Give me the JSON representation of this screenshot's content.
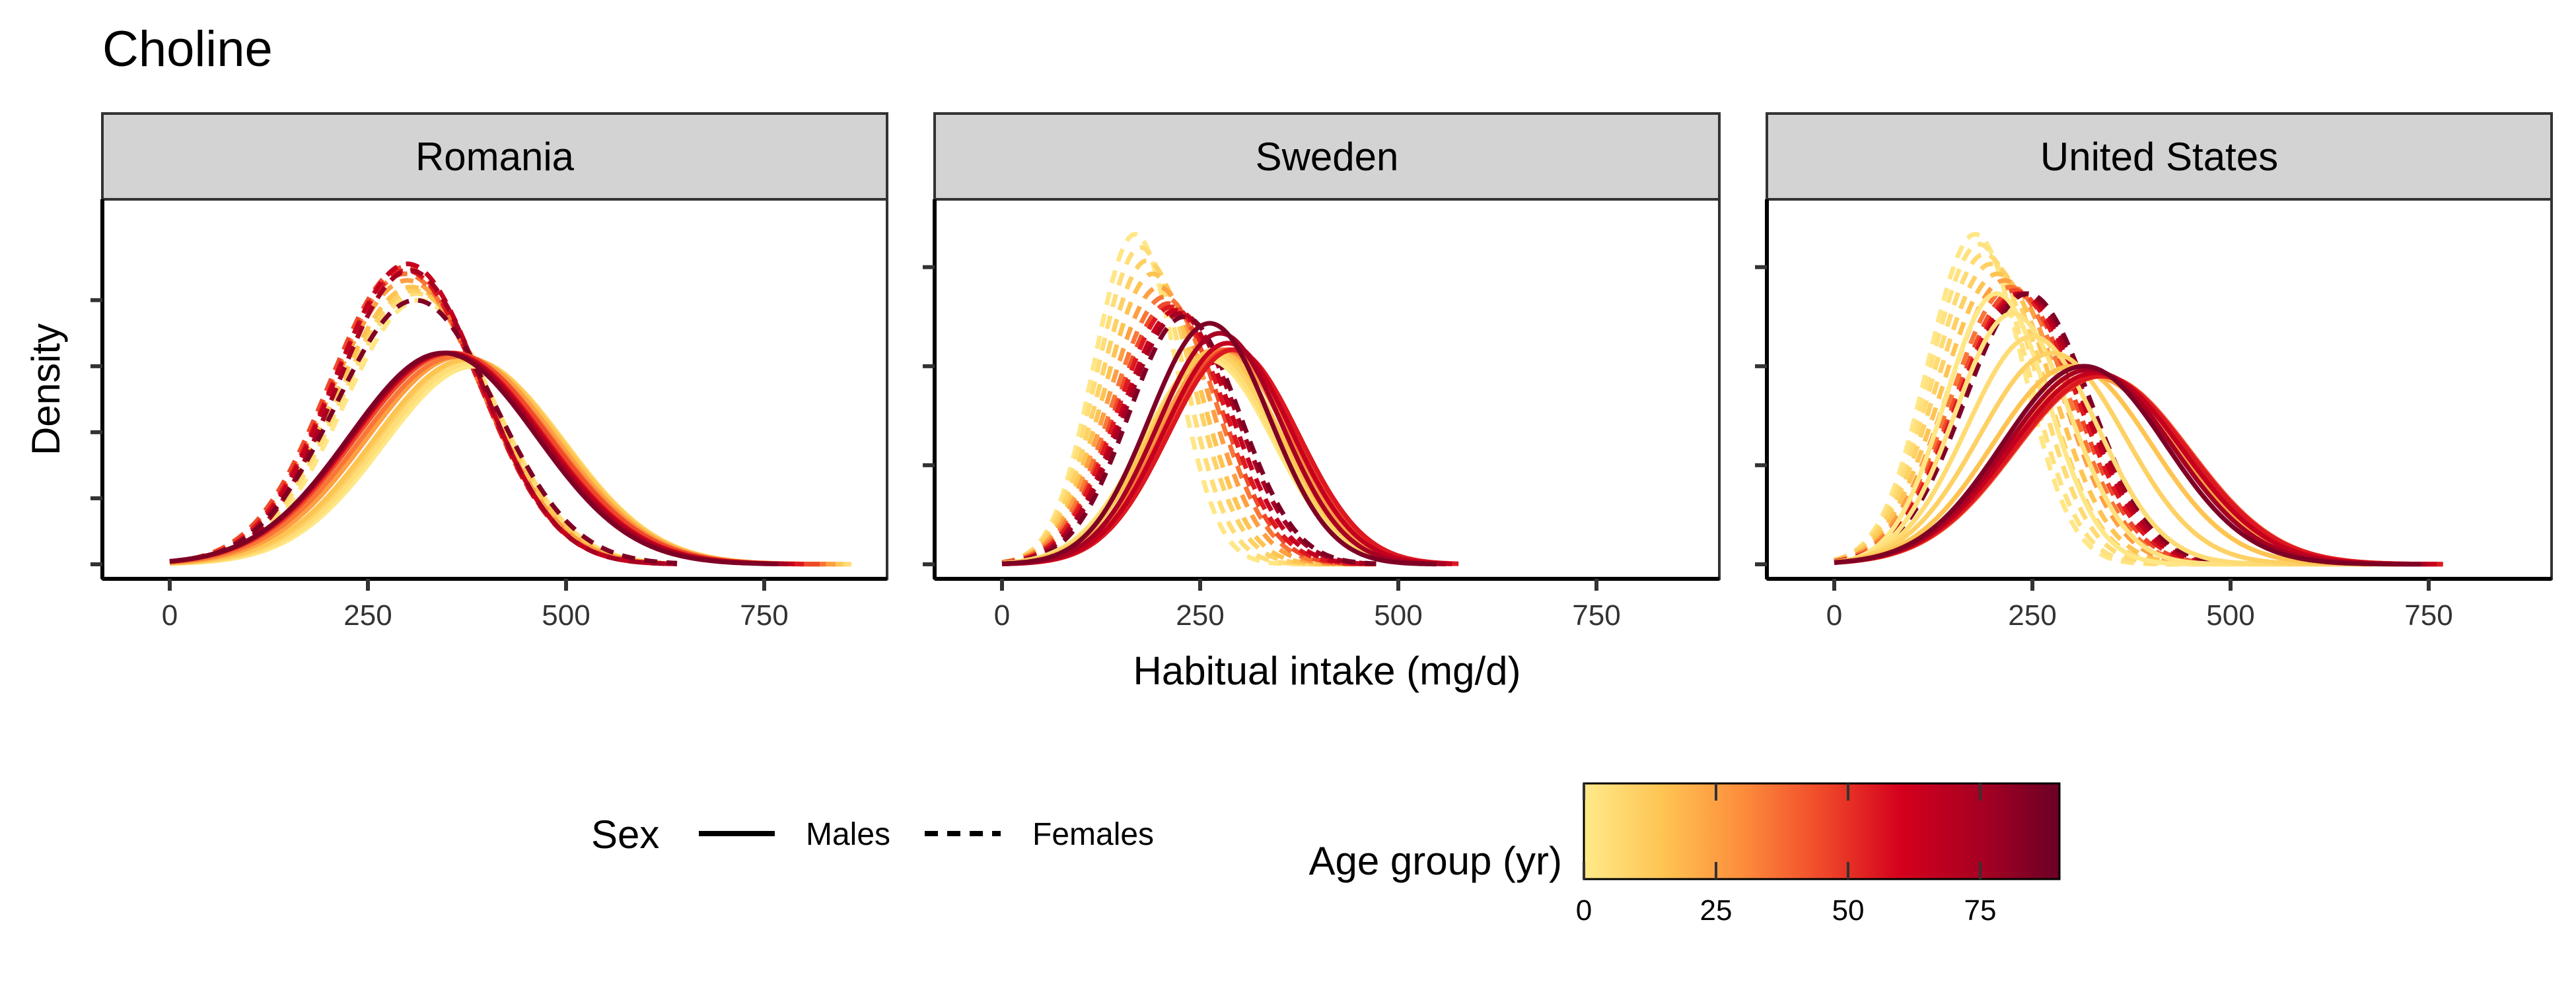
{
  "chart_data": {
    "type": "line",
    "title": "Choline",
    "xlabel": "Habitual intake (mg/d)",
    "ylabel": "Density",
    "xlim": [
      -85,
      905
    ],
    "x_ticks": [
      0,
      250,
      500,
      750
    ],
    "x_tick_labels": [
      "0",
      "250",
      "500",
      "750"
    ],
    "y_tick_labels_shown": false,
    "grid": false,
    "legend_position": "bottom",
    "legend": {
      "sex_title": "Sex",
      "sex_items": [
        {
          "label": "Males",
          "linetype": "solid"
        },
        {
          "label": "Females",
          "linetype": "dashed"
        }
      ],
      "age_title": "Age group (yr)",
      "age_range": [
        0,
        90
      ],
      "age_ticks": [
        0,
        25,
        50,
        75
      ],
      "age_tick_labels": [
        "0",
        "25",
        "50",
        "75"
      ],
      "age_colors": [
        "#FFEA8A",
        "#FEC452",
        "#FD8D3C",
        "#F0492A",
        "#D4001D",
        "#A80022",
        "#6B0026"
      ]
    },
    "panels": [
      {
        "facet": "Romania",
        "y_max": 1.09,
        "y_ticks": [
          0,
          0.2,
          0.4,
          0.6,
          0.8
        ],
        "series": [
          {
            "sex": "Males",
            "age": 1,
            "mean": 385,
            "sd": 115,
            "peak": 0.6,
            "end": 860
          },
          {
            "sex": "Males",
            "age": 5,
            "mean": 382,
            "sd": 116,
            "peak": 0.61,
            "end": 860
          },
          {
            "sex": "Males",
            "age": 10,
            "mean": 378,
            "sd": 117,
            "peak": 0.62,
            "end": 855
          },
          {
            "sex": "Males",
            "age": 15,
            "mean": 375,
            "sd": 118,
            "peak": 0.62,
            "end": 850
          },
          {
            "sex": "Males",
            "age": 25,
            "mean": 368,
            "sd": 119,
            "peak": 0.63,
            "end": 840
          },
          {
            "sex": "Males",
            "age": 35,
            "mean": 362,
            "sd": 120,
            "peak": 0.63,
            "end": 830
          },
          {
            "sex": "Males",
            "age": 45,
            "mean": 357,
            "sd": 121,
            "peak": 0.64,
            "end": 820
          },
          {
            "sex": "Males",
            "age": 55,
            "mean": 352,
            "sd": 120,
            "peak": 0.64,
            "end": 800
          },
          {
            "sex": "Males",
            "age": 65,
            "mean": 350,
            "sd": 120,
            "peak": 0.64,
            "end": 790
          },
          {
            "sex": "Males",
            "age": 75,
            "mean": 348,
            "sd": 119,
            "peak": 0.64,
            "end": 780
          },
          {
            "sex": "Males",
            "age": 85,
            "mean": 345,
            "sd": 118,
            "peak": 0.64,
            "end": 770
          },
          {
            "sex": "Females",
            "age": 1,
            "mean": 315,
            "sd": 95,
            "peak": 0.8,
            "end": 620
          },
          {
            "sex": "Females",
            "age": 5,
            "mean": 312,
            "sd": 96,
            "peak": 0.82,
            "end": 620
          },
          {
            "sex": "Females",
            "age": 10,
            "mean": 308,
            "sd": 96,
            "peak": 0.83,
            "end": 615
          },
          {
            "sex": "Females",
            "age": 15,
            "mean": 305,
            "sd": 97,
            "peak": 0.84,
            "end": 615
          },
          {
            "sex": "Females",
            "age": 25,
            "mean": 300,
            "sd": 97,
            "peak": 0.86,
            "end": 620
          },
          {
            "sex": "Females",
            "age": 35,
            "mean": 297,
            "sd": 96,
            "peak": 0.88,
            "end": 625
          },
          {
            "sex": "Females",
            "age": 45,
            "mean": 296,
            "sd": 95,
            "peak": 0.9,
            "end": 630
          },
          {
            "sex": "Females",
            "age": 55,
            "mean": 298,
            "sd": 94,
            "peak": 0.89,
            "end": 635
          },
          {
            "sex": "Females",
            "age": 65,
            "mean": 300,
            "sd": 93,
            "peak": 0.91,
            "end": 640
          },
          {
            "sex": "Females",
            "age": 75,
            "mean": 303,
            "sd": 92,
            "peak": 0.89,
            "end": 640
          },
          {
            "sex": "Females",
            "age": 85,
            "mean": 310,
            "sd": 100,
            "peak": 0.8,
            "end": 640
          }
        ]
      },
      {
        "facet": "Sweden",
        "y_max": 1.09,
        "y_ticks": [
          0,
          0.3,
          0.6,
          0.9
        ],
        "series": [
          {
            "sex": "Males",
            "age": 1,
            "mean": 260,
            "sd": 82,
            "peak": 0.62,
            "end": 540
          },
          {
            "sex": "Males",
            "age": 5,
            "mean": 262,
            "sd": 82,
            "peak": 0.63,
            "end": 545
          },
          {
            "sex": "Males",
            "age": 10,
            "mean": 266,
            "sd": 82,
            "peak": 0.64,
            "end": 550
          },
          {
            "sex": "Males",
            "age": 15,
            "mean": 270,
            "sd": 82,
            "peak": 0.65,
            "end": 555
          },
          {
            "sex": "Males",
            "age": 25,
            "mean": 278,
            "sd": 82,
            "peak": 0.65,
            "end": 565
          },
          {
            "sex": "Males",
            "age": 35,
            "mean": 283,
            "sd": 82,
            "peak": 0.65,
            "end": 570
          },
          {
            "sex": "Males",
            "age": 45,
            "mean": 288,
            "sd": 82,
            "peak": 0.65,
            "end": 575
          },
          {
            "sex": "Males",
            "age": 55,
            "mean": 292,
            "sd": 82,
            "peak": 0.65,
            "end": 578
          },
          {
            "sex": "Males",
            "age": 65,
            "mean": 285,
            "sd": 80,
            "peak": 0.67,
            "end": 570
          },
          {
            "sex": "Males",
            "age": 75,
            "mean": 275,
            "sd": 78,
            "peak": 0.7,
            "end": 560
          },
          {
            "sex": "Males",
            "age": 85,
            "mean": 262,
            "sd": 76,
            "peak": 0.73,
            "end": 550
          },
          {
            "sex": "Females",
            "age": 1,
            "mean": 168,
            "sd": 52,
            "peak": 1.0,
            "end": 410
          },
          {
            "sex": "Females",
            "age": 5,
            "mean": 175,
            "sd": 55,
            "peak": 0.96,
            "end": 420
          },
          {
            "sex": "Females",
            "age": 10,
            "mean": 183,
            "sd": 58,
            "peak": 0.92,
            "end": 430
          },
          {
            "sex": "Females",
            "age": 15,
            "mean": 190,
            "sd": 60,
            "peak": 0.88,
            "end": 440
          },
          {
            "sex": "Females",
            "age": 25,
            "mean": 198,
            "sd": 63,
            "peak": 0.84,
            "end": 450
          },
          {
            "sex": "Females",
            "age": 35,
            "mean": 205,
            "sd": 65,
            "peak": 0.81,
            "end": 460
          },
          {
            "sex": "Females",
            "age": 45,
            "mean": 210,
            "sd": 66,
            "peak": 0.79,
            "end": 465
          },
          {
            "sex": "Females",
            "age": 55,
            "mean": 214,
            "sd": 67,
            "peak": 0.78,
            "end": 470
          },
          {
            "sex": "Females",
            "age": 65,
            "mean": 220,
            "sd": 68,
            "peak": 0.77,
            "end": 475
          },
          {
            "sex": "Females",
            "age": 75,
            "mean": 225,
            "sd": 70,
            "peak": 0.76,
            "end": 475
          },
          {
            "sex": "Females",
            "age": 85,
            "mean": 230,
            "sd": 70,
            "peak": 0.75,
            "end": 475
          }
        ]
      },
      {
        "facet": "United States",
        "y_max": 1.09,
        "y_ticks": [
          0,
          0.3,
          0.6,
          0.9
        ],
        "series": [
          {
            "sex": "Males",
            "age": 1,
            "mean": 205,
            "sd": 65,
            "peak": 0.82,
            "end": 560
          },
          {
            "sex": "Males",
            "age": 3,
            "mean": 225,
            "sd": 72,
            "peak": 0.76,
            "end": 600
          },
          {
            "sex": "Males",
            "age": 6,
            "mean": 250,
            "sd": 82,
            "peak": 0.69,
            "end": 640
          },
          {
            "sex": "Males",
            "age": 10,
            "mean": 275,
            "sd": 92,
            "peak": 0.64,
            "end": 680
          },
          {
            "sex": "Males",
            "age": 15,
            "mean": 300,
            "sd": 100,
            "peak": 0.6,
            "end": 720
          },
          {
            "sex": "Males",
            "age": 25,
            "mean": 325,
            "sd": 108,
            "peak": 0.57,
            "end": 760
          },
          {
            "sex": "Males",
            "age": 35,
            "mean": 335,
            "sd": 110,
            "peak": 0.57,
            "end": 770
          },
          {
            "sex": "Males",
            "age": 45,
            "mean": 338,
            "sd": 110,
            "peak": 0.57,
            "end": 770
          },
          {
            "sex": "Males",
            "age": 55,
            "mean": 336,
            "sd": 110,
            "peak": 0.57,
            "end": 770
          },
          {
            "sex": "Males",
            "age": 65,
            "mean": 330,
            "sd": 108,
            "peak": 0.58,
            "end": 760
          },
          {
            "sex": "Males",
            "age": 75,
            "mean": 322,
            "sd": 105,
            "peak": 0.59,
            "end": 750
          },
          {
            "sex": "Males",
            "age": 85,
            "mean": 315,
            "sd": 103,
            "peak": 0.6,
            "end": 740
          },
          {
            "sex": "Females",
            "age": 1,
            "mean": 178,
            "sd": 60,
            "peak": 1.0,
            "end": 450
          },
          {
            "sex": "Females",
            "age": 3,
            "mean": 183,
            "sd": 62,
            "peak": 0.97,
            "end": 455
          },
          {
            "sex": "Females",
            "age": 6,
            "mean": 190,
            "sd": 65,
            "peak": 0.94,
            "end": 465
          },
          {
            "sex": "Females",
            "age": 10,
            "mean": 198,
            "sd": 68,
            "peak": 0.91,
            "end": 475
          },
          {
            "sex": "Females",
            "age": 15,
            "mean": 206,
            "sd": 70,
            "peak": 0.88,
            "end": 485
          },
          {
            "sex": "Females",
            "age": 25,
            "mean": 215,
            "sd": 72,
            "peak": 0.86,
            "end": 495
          },
          {
            "sex": "Females",
            "age": 35,
            "mean": 222,
            "sd": 74,
            "peak": 0.84,
            "end": 505
          },
          {
            "sex": "Females",
            "age": 45,
            "mean": 228,
            "sd": 75,
            "peak": 0.83,
            "end": 510
          },
          {
            "sex": "Females",
            "age": 55,
            "mean": 232,
            "sd": 76,
            "peak": 0.82,
            "end": 515
          },
          {
            "sex": "Females",
            "age": 65,
            "mean": 236,
            "sd": 77,
            "peak": 0.82,
            "end": 520
          },
          {
            "sex": "Females",
            "age": 75,
            "mean": 240,
            "sd": 78,
            "peak": 0.82,
            "end": 525
          },
          {
            "sex": "Females",
            "age": 85,
            "mean": 244,
            "sd": 79,
            "peak": 0.82,
            "end": 530
          }
        ]
      }
    ]
  }
}
